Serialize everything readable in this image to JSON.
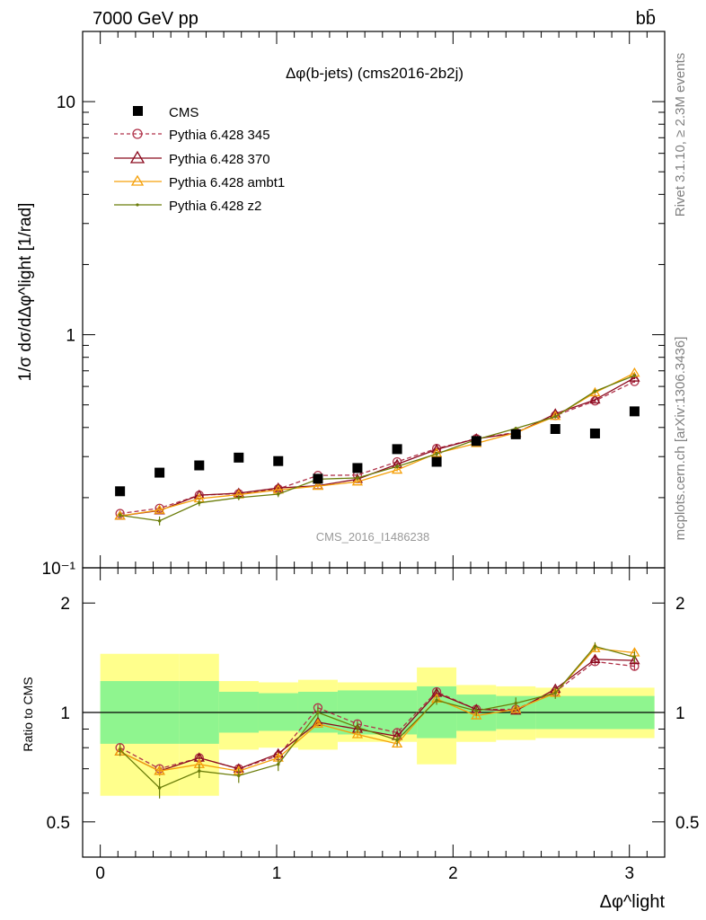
{
  "header": {
    "beam_label": "7000 GeV pp",
    "process_label": "bb̄"
  },
  "side_labels": {
    "rivet": "Rivet 3.1.10, ≥ 2.3M events",
    "mcplots": "mcplots.cern.ch [arXiv:1306.3436]"
  },
  "chart_data": [
    {
      "type": "scatter",
      "panel": "main",
      "title": "Δφ(b-jets) (cms2016-2b2j)",
      "watermark": "CMS_2016_I1486238",
      "ylabel": "1/σ dσ/dΔφ^light [1/rad]",
      "yscale": "log",
      "xlim": [
        -0.1,
        3.2
      ],
      "ylim": [
        0.1,
        20
      ],
      "y_ticks": [
        {
          "v": 10,
          "label": "10"
        },
        {
          "v": 1,
          "label": "1"
        },
        {
          "v": 0.1,
          "label": "10⁻¹"
        }
      ],
      "legend_position": "top-left",
      "x": [
        0.112,
        0.336,
        0.561,
        0.785,
        1.009,
        1.234,
        1.458,
        1.683,
        1.907,
        2.132,
        2.356,
        2.58,
        2.805,
        3.029
      ],
      "series": [
        {
          "name": "CMS",
          "color": "#000000",
          "marker": "square",
          "line": "none",
          "values": [
            0.213,
            0.256,
            0.275,
            0.297,
            0.287,
            0.241,
            0.268,
            0.323,
            0.285,
            0.35,
            0.374,
            0.394,
            0.377,
            0.469
          ],
          "yerr": [
            0.004,
            0.004,
            0.004,
            0.004,
            0.004,
            0.004,
            0.004,
            0.005,
            0.005,
            0.005,
            0.005,
            0.006,
            0.006,
            0.007
          ]
        },
        {
          "name": "Pythia 6.428 345",
          "color": "#b0334a",
          "marker": "circle",
          "line": "dashed",
          "values": [
            0.171,
            0.18,
            0.205,
            0.208,
            0.218,
            0.249,
            0.25,
            0.285,
            0.325,
            0.358,
            0.381,
            0.45,
            0.52,
            0.63
          ],
          "yerr": [
            0.003,
            0.003,
            0.003,
            0.003,
            0.003,
            0.004,
            0.004,
            0.004,
            0.005,
            0.005,
            0.005,
            0.006,
            0.007,
            0.008
          ]
        },
        {
          "name": "Pythia 6.428 370",
          "color": "#8b0a1e",
          "marker": "triangle",
          "line": "solid",
          "values": [
            0.167,
            0.176,
            0.205,
            0.209,
            0.22,
            0.225,
            0.24,
            0.278,
            0.322,
            0.358,
            0.378,
            0.458,
            0.526,
            0.653
          ],
          "yerr": [
            0.003,
            0.003,
            0.003,
            0.003,
            0.003,
            0.004,
            0.004,
            0.004,
            0.005,
            0.005,
            0.005,
            0.006,
            0.007,
            0.008
          ]
        },
        {
          "name": "Pythia 6.428 ambt1",
          "color": "#f5a00a",
          "marker": "triangle",
          "line": "solid",
          "values": [
            0.167,
            0.177,
            0.198,
            0.206,
            0.216,
            0.224,
            0.234,
            0.263,
            0.31,
            0.342,
            0.38,
            0.447,
            0.564,
            0.685
          ],
          "yerr": [
            0.003,
            0.003,
            0.003,
            0.003,
            0.003,
            0.004,
            0.004,
            0.004,
            0.005,
            0.005,
            0.005,
            0.006,
            0.007,
            0.008
          ]
        },
        {
          "name": "Pythia 6.428 z2",
          "color": "#6b7d0a",
          "marker": "dot",
          "line": "solid",
          "values": [
            0.168,
            0.159,
            0.19,
            0.2,
            0.207,
            0.24,
            0.243,
            0.272,
            0.308,
            0.355,
            0.396,
            0.445,
            0.572,
            0.668
          ],
          "yerr": [
            0.004,
            0.007,
            0.006,
            0.005,
            0.006,
            0.006,
            0.006,
            0.006,
            0.007,
            0.007,
            0.007,
            0.008,
            0.009,
            0.01
          ]
        }
      ]
    },
    {
      "type": "scatter",
      "panel": "ratio",
      "ylabel": "Ratio to CMS",
      "xlabel": "Δφ^light",
      "yscale": "log",
      "xlim": [
        -0.1,
        3.2
      ],
      "ylim": [
        0.4,
        2.5
      ],
      "x_ticks": [
        0,
        1,
        2,
        3
      ],
      "y_ticks": [
        {
          "v": 2,
          "label": "2"
        },
        {
          "v": 1,
          "label": "1"
        },
        {
          "v": 0.5,
          "label": "0.5"
        }
      ],
      "x_edges": [
        0.0,
        0.449,
        0.673,
        0.898,
        1.122,
        1.346,
        1.795,
        2.019,
        2.244,
        2.468,
        3.142
      ],
      "band_stat": [
        [
          0.82,
          1.22
        ],
        [
          0.82,
          1.22
        ],
        [
          0.88,
          1.14
        ],
        [
          0.89,
          1.13
        ],
        [
          0.88,
          1.14
        ],
        [
          0.87,
          1.15
        ],
        [
          0.85,
          1.18
        ],
        [
          0.89,
          1.12
        ],
        [
          0.9,
          1.11
        ],
        [
          0.9,
          1.11
        ],
        [
          0.91,
          1.1
        ]
      ],
      "band_total": [
        [
          0.59,
          1.45
        ],
        [
          0.59,
          1.45
        ],
        [
          0.79,
          1.22
        ],
        [
          0.8,
          1.21
        ],
        [
          0.79,
          1.23
        ],
        [
          0.83,
          1.21
        ],
        [
          0.72,
          1.33
        ],
        [
          0.83,
          1.19
        ],
        [
          0.84,
          1.18
        ],
        [
          0.85,
          1.17
        ],
        [
          0.86,
          1.16
        ]
      ],
      "x": [
        0.112,
        0.336,
        0.561,
        0.785,
        1.009,
        1.234,
        1.458,
        1.683,
        1.907,
        2.132,
        2.356,
        2.58,
        2.805,
        3.029
      ],
      "series": [
        {
          "name": "Pythia 6.428 345",
          "color": "#b0334a",
          "marker": "circle",
          "line": "dashed",
          "values": [
            0.8,
            0.7,
            0.75,
            0.7,
            0.76,
            1.03,
            0.93,
            0.88,
            1.14,
            1.02,
            1.02,
            1.14,
            1.38,
            1.34
          ],
          "yerr": [
            0.02,
            0.02,
            0.02,
            0.02,
            0.02,
            0.02,
            0.02,
            0.02,
            0.02,
            0.02,
            0.02,
            0.02,
            0.03,
            0.03
          ]
        },
        {
          "name": "Pythia 6.428 370",
          "color": "#8b0a1e",
          "marker": "triangle",
          "line": "solid",
          "values": [
            0.78,
            0.69,
            0.75,
            0.7,
            0.77,
            0.94,
            0.9,
            0.86,
            1.13,
            1.02,
            1.01,
            1.16,
            1.4,
            1.39
          ],
          "yerr": [
            0.02,
            0.02,
            0.02,
            0.02,
            0.02,
            0.02,
            0.02,
            0.02,
            0.02,
            0.02,
            0.02,
            0.02,
            0.03,
            0.03
          ]
        },
        {
          "name": "Pythia 6.428 ambt1",
          "color": "#f5a00a",
          "marker": "triangle",
          "line": "solid",
          "values": [
            0.78,
            0.69,
            0.72,
            0.69,
            0.75,
            0.93,
            0.87,
            0.82,
            1.09,
            0.98,
            1.02,
            1.13,
            1.5,
            1.46
          ],
          "yerr": [
            0.02,
            0.02,
            0.02,
            0.02,
            0.02,
            0.02,
            0.02,
            0.02,
            0.02,
            0.02,
            0.02,
            0.02,
            0.03,
            0.03
          ]
        },
        {
          "name": "Pythia 6.428 z2",
          "color": "#6b7d0a",
          "marker": "dot",
          "line": "solid",
          "values": [
            0.79,
            0.62,
            0.69,
            0.67,
            0.72,
            1.0,
            0.91,
            0.84,
            1.08,
            1.01,
            1.06,
            1.13,
            1.52,
            1.42
          ],
          "yerr": [
            0.03,
            0.04,
            0.03,
            0.03,
            0.03,
            0.03,
            0.03,
            0.03,
            0.03,
            0.03,
            0.04,
            0.04,
            0.04,
            0.05
          ]
        }
      ]
    }
  ]
}
